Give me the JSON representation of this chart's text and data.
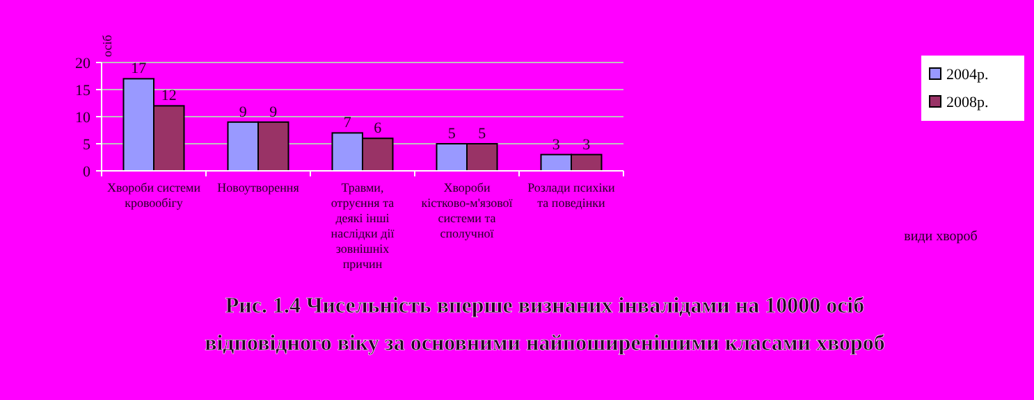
{
  "chart_data": {
    "type": "bar",
    "title": "Рис. 1.4 Чисельність вперше визнаних інвалідами на 10000 осіб відповідного віку за основними найпоширенішими класами хвороб",
    "annotations": [
      "види хвороб"
    ],
    "ylabel": "осіб",
    "categories": [
      "Хвороби системи кровообігу",
      "Новоутворення",
      "Травми, отруєння та деякі інші наслідки дії зовнішніх причин",
      "Хвороби кістково-м'язової системи та сполучної",
      "Розлади психіки та поведінки"
    ],
    "series": [
      {
        "name": "2004р.",
        "color": "#9999ff",
        "values": [
          17,
          9,
          7,
          5,
          3
        ]
      },
      {
        "name": "2008р.",
        "color": "#993366",
        "values": [
          12,
          9,
          6,
          5,
          3
        ]
      }
    ],
    "ylim": [
      0,
      20
    ],
    "yticks": [
      0,
      5,
      10,
      15,
      20
    ],
    "grid": "y",
    "legend": "right",
    "data_labels": true
  }
}
